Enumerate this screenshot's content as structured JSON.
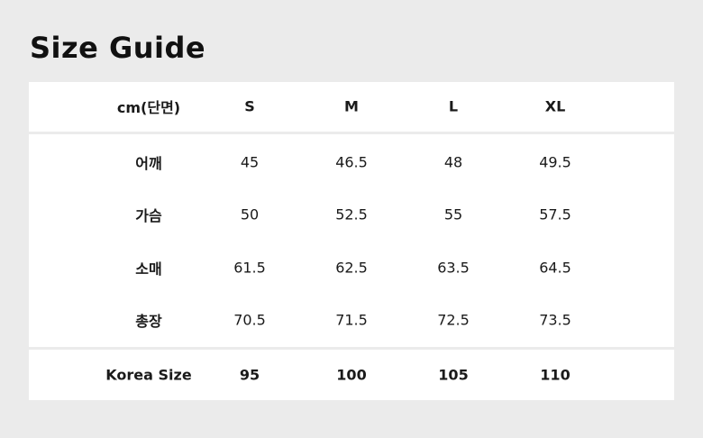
{
  "title": "Size Guide",
  "header": [
    "cm(단면)",
    "S",
    "M",
    "L",
    "XL"
  ],
  "rows": [
    {
      "label": "어깨",
      "values": [
        "45",
        "46.5",
        "48",
        "49.5"
      ]
    },
    {
      "label": "가슴",
      "values": [
        "50",
        "52.5",
        "55",
        "57.5"
      ]
    },
    {
      "label": "소매",
      "values": [
        "61.5",
        "62.5",
        "63.5",
        "64.5"
      ]
    },
    {
      "label": "총장",
      "values": [
        "70.5",
        "71.5",
        "72.5",
        "73.5"
      ]
    }
  ],
  "footer": {
    "label": "Korea Size",
    "values": [
      "95",
      "100",
      "105",
      "110"
    ]
  }
}
